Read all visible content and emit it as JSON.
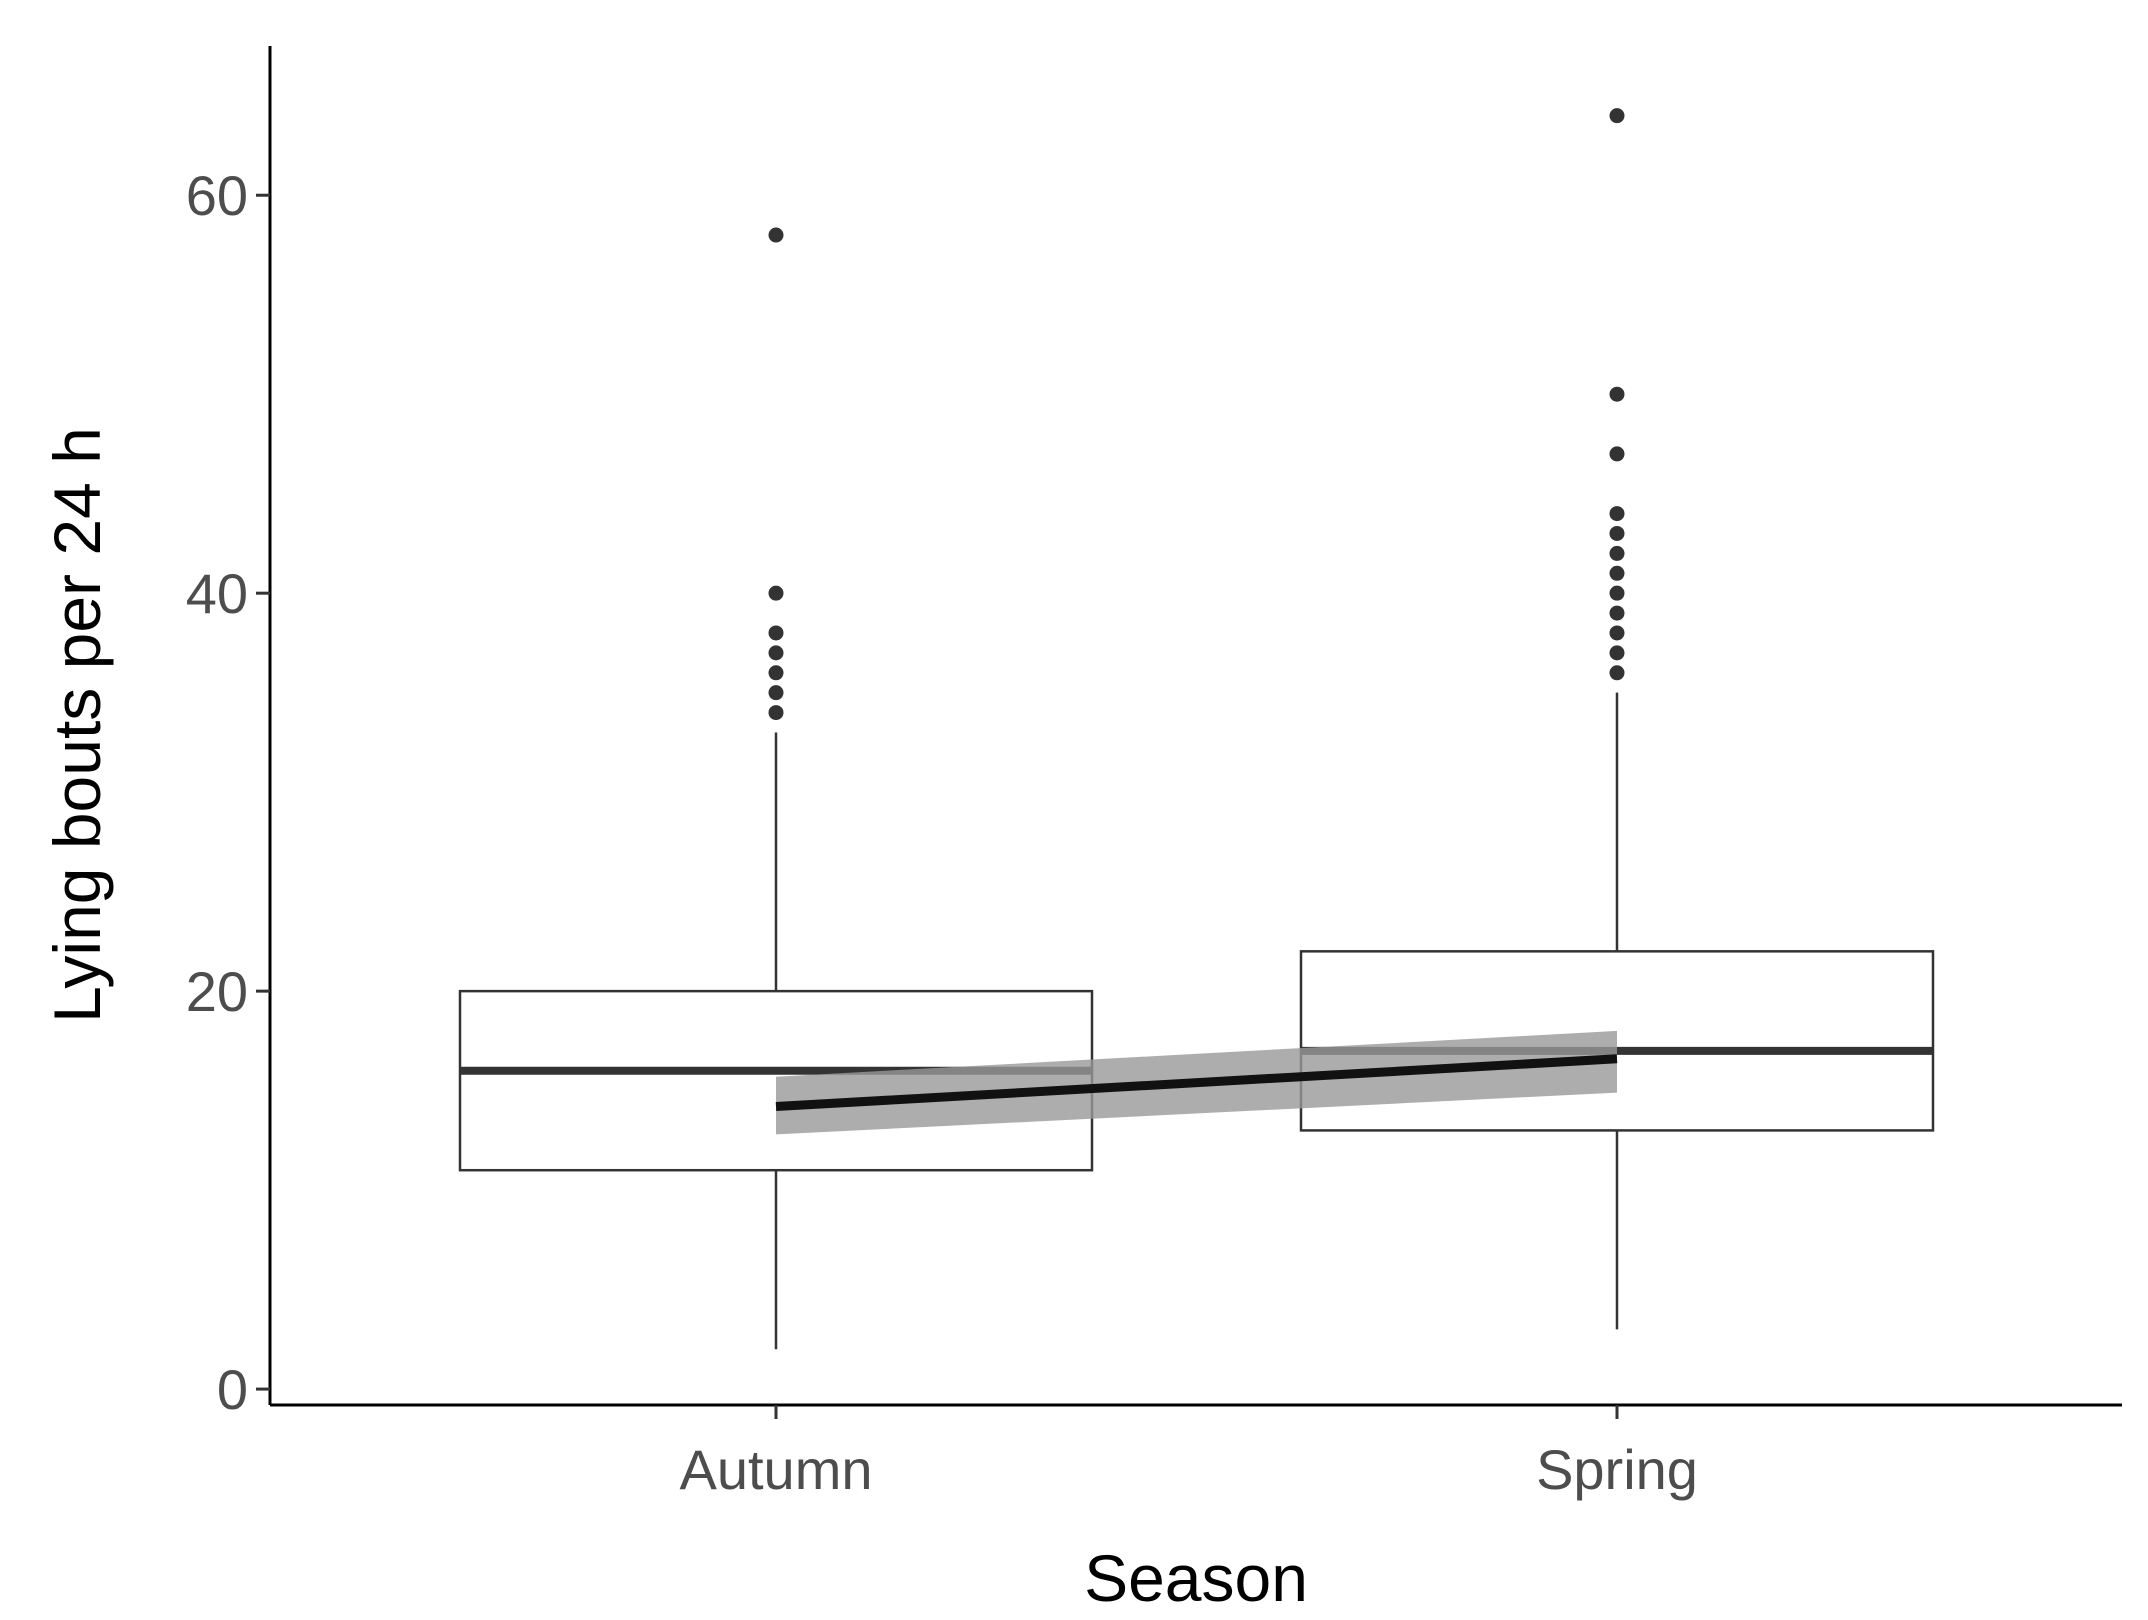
{
  "chart_data": {
    "type": "box",
    "xlabel": "Season",
    "ylabel": "Lying bouts per 24 h",
    "ylim": [
      -0.8,
      67.5
    ],
    "y_ticks": [
      0,
      20,
      40,
      60
    ],
    "grid": false,
    "categories": [
      "Autumn",
      "Spring"
    ],
    "boxes": [
      {
        "category": "Autumn",
        "whisker_low": 2,
        "q1": 11,
        "median": 16,
        "q3": 20,
        "whisker_high": 33,
        "outliers": [
          34,
          35,
          36,
          37,
          38,
          40,
          58
        ]
      },
      {
        "category": "Spring",
        "whisker_low": 3,
        "q1": 13,
        "median": 17,
        "q3": 22,
        "whisker_high": 35,
        "outliers": [
          36,
          37,
          38,
          39,
          40,
          41,
          42,
          43,
          44,
          47,
          50,
          64
        ]
      }
    ],
    "trend_line": {
      "from": {
        "category": "Autumn",
        "y": 14.2,
        "ci_low": 12.8,
        "ci_high": 15.7
      },
      "to": {
        "category": "Spring",
        "y": 16.6,
        "ci_low": 14.9,
        "ci_high": 18.0
      }
    },
    "colors": {
      "box_fill": "#ffffff",
      "box_stroke": "#333333",
      "median": "#333333",
      "outlier": "#333333",
      "trend": "#111111",
      "ci_band": "#999999"
    }
  }
}
